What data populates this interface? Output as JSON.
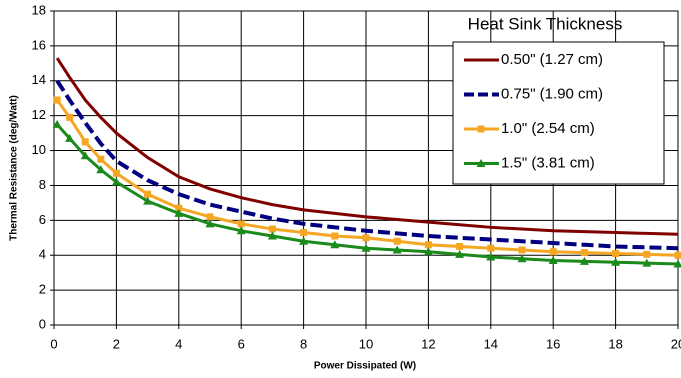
{
  "chart_data": {
    "type": "line",
    "xlabel": "Power Dissipated (W)",
    "ylabel": "Thermal Resistance (deg/Watt)",
    "legend_title": "Heat Sink Thickness",
    "legend": "upper right",
    "grid": true,
    "xlim": [
      0,
      20
    ],
    "xticks": [
      0,
      2,
      4,
      6,
      8,
      10,
      12,
      14,
      16,
      18,
      20
    ],
    "ylim": [
      0,
      18
    ],
    "yticks": [
      0,
      2,
      4,
      6,
      8,
      10,
      12,
      14,
      16,
      18
    ],
    "x": [
      0.1,
      0.5,
      1,
      1.5,
      2,
      3,
      4,
      5,
      6,
      7,
      8,
      9,
      10,
      11,
      12,
      13,
      14,
      15,
      16,
      17,
      18,
      19,
      20
    ],
    "series": [
      {
        "name": "0.50\" (1.27 cm)",
        "color": "#800000",
        "marker": "none",
        "dash": false,
        "values": [
          15.3,
          14.2,
          12.9,
          11.9,
          11.0,
          9.6,
          8.5,
          7.8,
          7.3,
          6.9,
          6.6,
          6.4,
          6.2,
          6.05,
          5.9,
          5.75,
          5.6,
          5.5,
          5.4,
          5.35,
          5.3,
          5.25,
          5.2
        ]
      },
      {
        "name": "0.75\" (1.90 cm)",
        "color": "#000080",
        "marker": "none",
        "dash": true,
        "values": [
          14.0,
          12.9,
          11.6,
          10.4,
          9.4,
          8.3,
          7.5,
          6.9,
          6.5,
          6.1,
          5.8,
          5.6,
          5.4,
          5.25,
          5.1,
          5.0,
          4.9,
          4.8,
          4.7,
          4.6,
          4.5,
          4.45,
          4.4
        ]
      },
      {
        "name": "1.0\" (2.54 cm)",
        "color": "#f5a623",
        "marker": "square",
        "dash": false,
        "values": [
          12.9,
          11.9,
          10.5,
          9.5,
          8.7,
          7.5,
          6.7,
          6.2,
          5.8,
          5.5,
          5.3,
          5.1,
          5.0,
          4.8,
          4.6,
          4.5,
          4.4,
          4.3,
          4.2,
          4.15,
          4.1,
          4.05,
          4.0
        ]
      },
      {
        "name": "1.5\" (3.81 cm)",
        "color": "#1a8a1a",
        "marker": "triangle",
        "dash": false,
        "values": [
          11.5,
          10.7,
          9.7,
          8.9,
          8.2,
          7.1,
          6.4,
          5.8,
          5.4,
          5.1,
          4.8,
          4.6,
          4.4,
          4.3,
          4.2,
          4.05,
          3.9,
          3.8,
          3.7,
          3.65,
          3.6,
          3.55,
          3.5
        ]
      }
    ]
  }
}
